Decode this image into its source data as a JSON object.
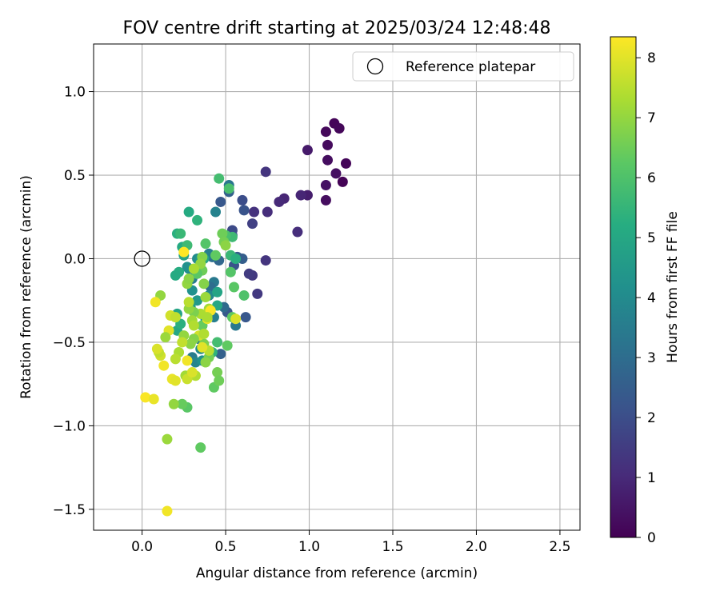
{
  "chart_data": {
    "type": "scatter",
    "title": "FOV centre drift starting at 2025/03/24 12:48:48",
    "xlabel": "Angular distance from reference (arcmin)",
    "ylabel": "Rotation from reference (arcmin)",
    "xlim": [
      -0.29,
      2.62
    ],
    "ylim": [
      -1.625,
      1.285
    ],
    "xticks": [
      0.0,
      0.5,
      1.0,
      1.5,
      2.0,
      2.5
    ],
    "xtick_labels": [
      "0.0",
      "0.5",
      "1.0",
      "1.5",
      "2.0",
      "2.5"
    ],
    "yticks": [
      -1.5,
      -1.0,
      -0.5,
      0.0,
      0.5,
      1.0
    ],
    "ytick_labels": [
      "−1.5",
      "−1.0",
      "−0.5",
      "0.0",
      "0.5",
      "1.0"
    ],
    "grid": true,
    "legend": {
      "placement": "top-right",
      "entries": [
        {
          "label": "Reference platepar",
          "marker": "open-circle",
          "color": "#000000"
        }
      ]
    },
    "reference_point": {
      "x": 0.0,
      "y": 0.0
    },
    "colorbar": {
      "label": "Hours from first FF file",
      "range": [
        0,
        8.35
      ],
      "ticks": [
        0,
        1,
        2,
        3,
        4,
        5,
        6,
        7,
        8
      ],
      "tick_labels": [
        "0",
        "1",
        "2",
        "3",
        "4",
        "5",
        "6",
        "7",
        "8"
      ],
      "colormap": "viridis"
    },
    "point_fields": [
      "x",
      "y",
      "hours"
    ],
    "points": [
      [
        1.15,
        0.81,
        0.1
      ],
      [
        1.18,
        0.78,
        0.15
      ],
      [
        1.1,
        0.76,
        0.2
      ],
      [
        1.11,
        0.68,
        0.25
      ],
      [
        1.11,
        0.59,
        0.3
      ],
      [
        1.22,
        0.57,
        0.1
      ],
      [
        1.16,
        0.51,
        0.35
      ],
      [
        1.2,
        0.46,
        0.05
      ],
      [
        1.1,
        0.44,
        0.4
      ],
      [
        1.1,
        0.35,
        0.3
      ],
      [
        0.99,
        0.65,
        0.6
      ],
      [
        0.99,
        0.38,
        0.7
      ],
      [
        0.95,
        0.38,
        0.9
      ],
      [
        0.93,
        0.16,
        1.1
      ],
      [
        0.85,
        0.36,
        0.9
      ],
      [
        0.82,
        0.34,
        1.0
      ],
      [
        0.75,
        0.28,
        1.1
      ],
      [
        0.74,
        0.52,
        1.3
      ],
      [
        0.67,
        0.28,
        1.2
      ],
      [
        0.74,
        -0.01,
        1.3
      ],
      [
        0.66,
        -0.1,
        1.4
      ],
      [
        0.64,
        -0.09,
        1.5
      ],
      [
        0.69,
        -0.21,
        1.4
      ],
      [
        0.66,
        0.21,
        1.6
      ],
      [
        0.6,
        0.35,
        2.0
      ],
      [
        0.61,
        0.29,
        2.2
      ],
      [
        0.54,
        0.17,
        1.9
      ],
      [
        0.54,
        0.14,
        2.1
      ],
      [
        0.47,
        0.34,
        2.3
      ],
      [
        0.52,
        0.4,
        2.6
      ],
      [
        0.52,
        0.44,
        3.3
      ],
      [
        0.57,
        0.01,
        2.4
      ],
      [
        0.55,
        -0.04,
        2.2
      ],
      [
        0.6,
        0.0,
        2.5
      ],
      [
        0.62,
        -0.35,
        2.3
      ],
      [
        0.51,
        -0.32,
        2.3
      ],
      [
        0.49,
        -0.29,
        2.9
      ],
      [
        0.47,
        -0.57,
        2.6
      ],
      [
        0.56,
        -0.4,
        3.4
      ],
      [
        0.44,
        0.28,
        3.7
      ],
      [
        0.46,
        -0.01,
        2.8
      ],
      [
        0.42,
        0.01,
        3.1
      ],
      [
        0.4,
        0.03,
        3.6
      ],
      [
        0.43,
        -0.14,
        3.4
      ],
      [
        0.41,
        -0.17,
        3.0
      ],
      [
        0.43,
        -0.35,
        3.6
      ],
      [
        0.4,
        -0.22,
        3.9
      ],
      [
        0.38,
        -0.36,
        4.5
      ],
      [
        0.36,
        -0.4,
        4.3
      ],
      [
        0.35,
        -0.54,
        4.0
      ],
      [
        0.34,
        -0.48,
        3.2
      ],
      [
        0.3,
        -0.59,
        3.5
      ],
      [
        0.32,
        -0.62,
        3.8
      ],
      [
        0.36,
        -0.61,
        4.2
      ],
      [
        0.3,
        -0.12,
        3.5
      ],
      [
        0.28,
        -0.06,
        3.9
      ],
      [
        0.3,
        -0.19,
        4.2
      ],
      [
        0.33,
        -0.25,
        4.5
      ],
      [
        0.29,
        -0.29,
        4.6
      ],
      [
        0.27,
        -0.05,
        4.2
      ],
      [
        0.33,
        0.0,
        4.0
      ],
      [
        0.35,
        0.0,
        4.4
      ],
      [
        0.37,
        0.0,
        4.9
      ],
      [
        0.32,
        -0.07,
        4.7
      ],
      [
        0.25,
        0.02,
        4.9
      ],
      [
        0.24,
        0.07,
        5.1
      ],
      [
        0.21,
        0.15,
        5.3
      ],
      [
        0.22,
        -0.08,
        5.2
      ],
      [
        0.2,
        -0.1,
        5.1
      ],
      [
        0.21,
        -0.33,
        4.9
      ],
      [
        0.21,
        -0.43,
        5.0
      ],
      [
        0.23,
        -0.39,
        5.3
      ],
      [
        0.45,
        -0.2,
        4.9
      ],
      [
        0.45,
        -0.28,
        5.0
      ],
      [
        0.28,
        0.28,
        5.1
      ],
      [
        0.33,
        0.23,
        5.4
      ],
      [
        0.23,
        0.15,
        5.6
      ],
      [
        0.27,
        0.08,
        5.7
      ],
      [
        0.46,
        0.48,
        5.8
      ],
      [
        0.52,
        0.42,
        5.9
      ],
      [
        0.54,
        0.13,
        5.7
      ],
      [
        0.5,
        0.14,
        5.9
      ],
      [
        0.53,
        0.02,
        5.6
      ],
      [
        0.56,
        0.0,
        5.3
      ],
      [
        0.55,
        -0.17,
        6.2
      ],
      [
        0.53,
        -0.08,
        6.1
      ],
      [
        0.61,
        -0.22,
        6.0
      ],
      [
        0.54,
        -0.35,
        6.3
      ],
      [
        0.45,
        -0.5,
        5.8
      ],
      [
        0.42,
        -0.56,
        5.4
      ],
      [
        0.51,
        -0.52,
        6.3
      ],
      [
        0.43,
        -0.77,
        6.3
      ],
      [
        0.45,
        -0.68,
        6.6
      ],
      [
        0.46,
        -0.73,
        6.5
      ],
      [
        0.35,
        -1.13,
        6.3
      ],
      [
        0.27,
        -0.89,
        6.2
      ],
      [
        0.24,
        -0.87,
        6.4
      ],
      [
        0.4,
        -0.59,
        6.6
      ],
      [
        0.38,
        -0.62,
        6.9
      ],
      [
        0.37,
        -0.51,
        6.7
      ],
      [
        0.36,
        -0.4,
        6.4
      ],
      [
        0.36,
        -0.07,
        6.5
      ],
      [
        0.33,
        -0.09,
        6.2
      ],
      [
        0.38,
        0.09,
        6.1
      ],
      [
        0.44,
        0.02,
        6.3
      ],
      [
        0.48,
        0.15,
        6.5
      ],
      [
        0.49,
        0.1,
        6.6
      ],
      [
        0.5,
        0.08,
        6.9
      ],
      [
        0.36,
        0.01,
        6.8
      ],
      [
        0.35,
        -0.03,
        7.0
      ],
      [
        0.37,
        -0.15,
        6.8
      ],
      [
        0.38,
        -0.23,
        7.1
      ],
      [
        0.4,
        -0.3,
        7.2
      ],
      [
        0.39,
        -0.33,
        7.6
      ],
      [
        0.35,
        -0.33,
        7.3
      ],
      [
        0.34,
        -0.46,
        7.8
      ],
      [
        0.37,
        -0.45,
        7.4
      ],
      [
        0.4,
        -0.55,
        7.5
      ],
      [
        0.31,
        -0.48,
        6.8
      ],
      [
        0.29,
        -0.51,
        6.9
      ],
      [
        0.31,
        -0.32,
        6.7
      ],
      [
        0.28,
        -0.3,
        7.0
      ],
      [
        0.3,
        -0.37,
        7.2
      ],
      [
        0.31,
        -0.4,
        7.4
      ],
      [
        0.27,
        -0.15,
        7.0
      ],
      [
        0.28,
        -0.12,
        6.9
      ],
      [
        0.31,
        -0.06,
        7.3
      ],
      [
        0.28,
        -0.26,
        7.5
      ],
      [
        0.25,
        -0.46,
        7.0
      ],
      [
        0.22,
        -0.56,
        7.3
      ],
      [
        0.2,
        -0.6,
        7.5
      ],
      [
        0.26,
        -0.7,
        7.2
      ],
      [
        0.32,
        -0.7,
        7.4
      ],
      [
        0.27,
        -0.72,
        7.7
      ],
      [
        0.3,
        -0.68,
        7.9
      ],
      [
        0.18,
        -0.72,
        8.1
      ],
      [
        0.2,
        -0.73,
        8.0
      ],
      [
        0.13,
        -0.64,
        8.2
      ],
      [
        0.11,
        -0.58,
        7.8
      ],
      [
        0.1,
        -0.56,
        7.6
      ],
      [
        0.09,
        -0.54,
        7.9
      ],
      [
        0.16,
        -0.43,
        8.0
      ],
      [
        0.17,
        -0.34,
        7.8
      ],
      [
        0.2,
        -0.35,
        7.6
      ],
      [
        0.11,
        -0.22,
        7.0
      ],
      [
        0.08,
        -0.26,
        8.2
      ],
      [
        0.14,
        -0.47,
        7.1
      ],
      [
        0.19,
        -0.87,
        7.0
      ],
      [
        0.15,
        -1.08,
        7.1
      ],
      [
        0.15,
        -1.51,
        8.2
      ],
      [
        0.02,
        -0.83,
        8.3
      ],
      [
        0.07,
        -0.84,
        8.1
      ],
      [
        0.25,
        0.04,
        8.35
      ],
      [
        0.27,
        -0.61,
        8.2
      ],
      [
        0.36,
        -0.53,
        8.0
      ],
      [
        0.39,
        -0.36,
        8.1
      ],
      [
        0.41,
        -0.31,
        8.3
      ],
      [
        0.56,
        -0.36,
        7.9
      ],
      [
        0.39,
        -0.35,
        7.3
      ],
      [
        0.24,
        -0.5,
        7.6
      ]
    ]
  }
}
